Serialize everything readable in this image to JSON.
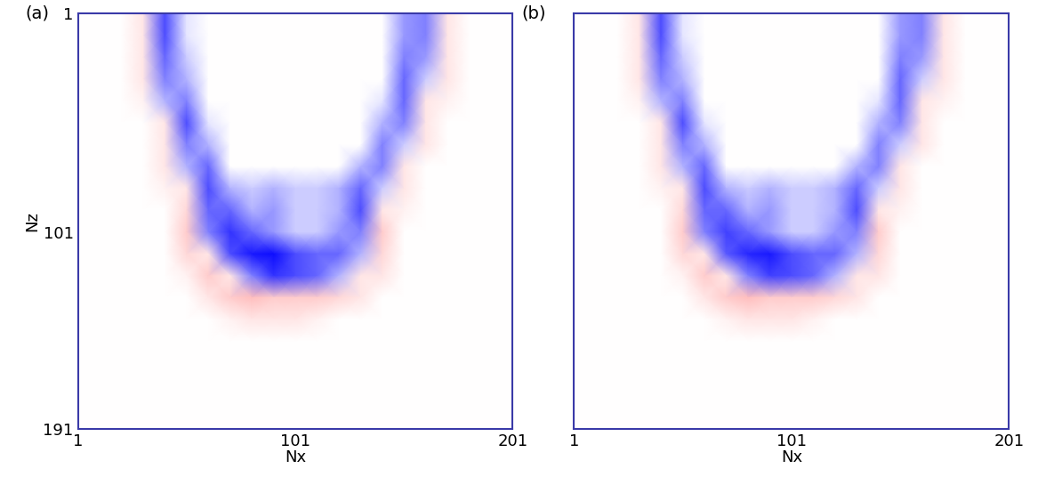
{
  "chart_data": [
    {
      "type": "heatmap",
      "title": "(a)",
      "x_label": "Nx",
      "y_label": "Nz",
      "xlim": [
        1,
        201
      ],
      "ylim": [
        191,
        1
      ],
      "xticks": [
        1,
        101,
        201
      ],
      "yticks": [
        1,
        101,
        191
      ],
      "color_range": [
        -1,
        1
      ],
      "x": [
        1,
        11,
        21,
        31,
        41,
        51,
        61,
        71,
        81,
        91,
        101,
        111,
        121,
        131,
        141,
        151,
        161,
        171,
        181,
        191,
        201
      ],
      "y": [
        1,
        11,
        21,
        31,
        41,
        51,
        61,
        71,
        81,
        91,
        101,
        111,
        121,
        131,
        141,
        151,
        161,
        171,
        181,
        191
      ],
      "cells": [
        [
          0,
          0,
          0,
          0.1,
          -0.7,
          -0.1,
          0,
          0,
          0,
          0,
          0,
          0,
          0,
          0,
          0,
          -0.4,
          -0.5,
          0.1,
          0,
          0,
          0
        ],
        [
          0,
          0,
          0,
          0.1,
          -0.7,
          -0.1,
          0,
          0,
          0,
          0,
          0,
          0,
          0,
          0,
          0,
          -0.4,
          -0.5,
          0.1,
          0,
          0,
          0
        ],
        [
          0,
          0,
          0,
          0.1,
          -0.6,
          -0.2,
          0,
          0,
          0,
          0,
          0,
          0,
          0,
          0,
          0,
          -0.5,
          -0.4,
          0.1,
          0,
          0,
          0
        ],
        [
          0,
          0,
          0,
          0.1,
          -0.5,
          -0.3,
          0,
          0,
          0,
          0,
          0,
          0,
          0,
          0,
          0,
          -0.6,
          -0.2,
          0.1,
          0,
          0,
          0
        ],
        [
          0,
          0,
          0,
          0.05,
          -0.3,
          -0.5,
          0,
          0,
          0,
          0,
          0,
          0,
          0,
          0,
          -0.1,
          -0.6,
          0.1,
          0.05,
          0,
          0,
          0
        ],
        [
          0,
          0,
          0,
          0,
          0.1,
          -0.7,
          -0.1,
          0,
          0,
          0,
          0,
          0,
          0,
          0,
          -0.3,
          -0.5,
          0.1,
          0,
          0,
          0,
          0
        ],
        [
          0,
          0,
          0,
          0,
          0.1,
          -0.5,
          -0.3,
          0,
          0,
          0,
          0,
          0,
          0,
          0,
          -0.5,
          -0.2,
          0.1,
          0,
          0,
          0,
          0
        ],
        [
          0,
          0,
          0,
          0,
          0.1,
          -0.3,
          -0.6,
          0,
          0,
          0,
          0,
          0,
          0,
          -0.3,
          -0.5,
          0.1,
          0,
          0,
          0,
          0,
          0
        ],
        [
          0,
          0,
          0,
          0,
          0.05,
          0.1,
          -0.7,
          -0.3,
          -0.2,
          -0.3,
          -0.2,
          -0.2,
          -0.3,
          -0.6,
          -0.2,
          0.1,
          0,
          0,
          0,
          0,
          0
        ],
        [
          0,
          0,
          0,
          0,
          0,
          0.15,
          -0.6,
          -0.6,
          -0.3,
          -0.4,
          -0.2,
          -0.2,
          -0.3,
          -0.7,
          0.1,
          0.05,
          0,
          0,
          0,
          0,
          0
        ],
        [
          0,
          0,
          0,
          0,
          0,
          0.2,
          -0.5,
          -0.8,
          -0.6,
          -0.4,
          -0.2,
          -0.2,
          -0.4,
          -0.5,
          0.2,
          0,
          0,
          0,
          0,
          0,
          0
        ],
        [
          0,
          0,
          0,
          0,
          0,
          0.15,
          0.1,
          -0.7,
          -0.9,
          -0.95,
          -0.7,
          -0.6,
          -0.6,
          -0.3,
          0.15,
          0,
          0,
          0,
          0,
          0,
          0
        ],
        [
          0,
          0,
          0,
          0,
          0,
          0.05,
          0.2,
          0.1,
          -0.5,
          -0.8,
          -0.7,
          -0.6,
          -0.3,
          0.1,
          0.1,
          0,
          0,
          0,
          0,
          0,
          0
        ],
        [
          0,
          0,
          0,
          0,
          0,
          0,
          0.1,
          0.2,
          0.25,
          0.2,
          0.2,
          0.2,
          0.15,
          0.1,
          0,
          0,
          0,
          0,
          0,
          0,
          0
        ],
        [
          0,
          0,
          0,
          0,
          0,
          0,
          0,
          0.05,
          0.1,
          0.1,
          0.1,
          0.05,
          0,
          0,
          0,
          0,
          0,
          0,
          0,
          0,
          0
        ],
        [
          0,
          0,
          0,
          0,
          0,
          0,
          0,
          0,
          0,
          0,
          0,
          0,
          0,
          0,
          0,
          0,
          0,
          0,
          0,
          0,
          0
        ],
        [
          0,
          0,
          0,
          0,
          0,
          0,
          0,
          0,
          0,
          0,
          0,
          0,
          0,
          0,
          0,
          0,
          0,
          0,
          0,
          0,
          0
        ],
        [
          0,
          0,
          0,
          0,
          0,
          0,
          0,
          0,
          0,
          0,
          0,
          0,
          0,
          0,
          0,
          0,
          0,
          0,
          0,
          0,
          0
        ],
        [
          0,
          0,
          0,
          0,
          0,
          0,
          0,
          0,
          0,
          0,
          0,
          0,
          0,
          0,
          0,
          0,
          0,
          0,
          0,
          0,
          0
        ],
        [
          0,
          0,
          0,
          0,
          0,
          0,
          0,
          0,
          0,
          0,
          0,
          0,
          0,
          0,
          0,
          0,
          0,
          0,
          0,
          0,
          0
        ]
      ]
    },
    {
      "type": "heatmap",
      "title": "(b)",
      "x_label": "Nx",
      "tick_labels": "x",
      "xlim": [
        1,
        201
      ],
      "ylim": [
        191,
        1
      ],
      "xticks": [
        1,
        101,
        201
      ],
      "yticks": [
        1,
        101,
        191
      ],
      "color_range": [
        -1,
        1
      ],
      "x": [
        1,
        11,
        21,
        31,
        41,
        51,
        61,
        71,
        81,
        91,
        101,
        111,
        121,
        131,
        141,
        151,
        161,
        171,
        181,
        191,
        201
      ],
      "y": [
        1,
        11,
        21,
        31,
        41,
        51,
        61,
        71,
        81,
        91,
        101,
        111,
        121,
        131,
        141,
        151,
        161,
        171,
        181,
        191
      ],
      "cells": [
        [
          0,
          0,
          0,
          0.1,
          -0.7,
          -0.1,
          0,
          0,
          0,
          0,
          0,
          0,
          0,
          0,
          0,
          -0.4,
          -0.5,
          0.1,
          0,
          0,
          0
        ],
        [
          0,
          0,
          0,
          0.1,
          -0.7,
          -0.1,
          0,
          0,
          0,
          0,
          0,
          0,
          0,
          0,
          0,
          -0.4,
          -0.5,
          0.1,
          0,
          0,
          0
        ],
        [
          0,
          0,
          0,
          0.1,
          -0.6,
          -0.2,
          0,
          0,
          0,
          0,
          0,
          0,
          0,
          0,
          0,
          -0.5,
          -0.4,
          0.1,
          0,
          0,
          0
        ],
        [
          0,
          0,
          0,
          0.1,
          -0.5,
          -0.3,
          0,
          0,
          0,
          0,
          0,
          0,
          0,
          0,
          0,
          -0.6,
          -0.2,
          0.1,
          0,
          0,
          0
        ],
        [
          0,
          0,
          0,
          0.05,
          -0.3,
          -0.5,
          0,
          0,
          0,
          0,
          0,
          0,
          0,
          0,
          -0.1,
          -0.6,
          0.1,
          0.05,
          0,
          0,
          0
        ],
        [
          0,
          0,
          0,
          0,
          0.1,
          -0.7,
          -0.1,
          0,
          0,
          0,
          0,
          0,
          0,
          0,
          -0.3,
          -0.5,
          0.1,
          0,
          0,
          0,
          0
        ],
        [
          0,
          0,
          0,
          0,
          0.1,
          -0.5,
          -0.3,
          0,
          0,
          0,
          0,
          0,
          0,
          0,
          -0.5,
          -0.2,
          0.1,
          0,
          0,
          0,
          0
        ],
        [
          0,
          0,
          0,
          0,
          0.1,
          -0.3,
          -0.6,
          0,
          0,
          0,
          0,
          0,
          0,
          -0.3,
          -0.5,
          0.1,
          0,
          0,
          0,
          0,
          0
        ],
        [
          0,
          0,
          0,
          0,
          0.05,
          0.1,
          -0.7,
          -0.3,
          -0.2,
          -0.3,
          -0.2,
          -0.2,
          -0.3,
          -0.6,
          -0.2,
          0.1,
          0,
          0,
          0,
          0,
          0
        ],
        [
          0,
          0,
          0,
          0,
          0,
          0.15,
          -0.6,
          -0.6,
          -0.3,
          -0.4,
          -0.2,
          -0.2,
          -0.3,
          -0.7,
          0.1,
          0.05,
          0,
          0,
          0,
          0,
          0
        ],
        [
          0,
          0,
          0,
          0,
          0,
          0.2,
          -0.5,
          -0.75,
          -0.6,
          -0.4,
          -0.2,
          -0.2,
          -0.4,
          -0.5,
          0.2,
          0,
          0,
          0,
          0,
          0,
          0
        ],
        [
          0,
          0,
          0,
          0,
          0,
          0.15,
          0.1,
          -0.65,
          -0.85,
          -0.9,
          -0.7,
          -0.6,
          -0.6,
          -0.3,
          0.15,
          0,
          0,
          0,
          0,
          0,
          0
        ],
        [
          0,
          0,
          0,
          0,
          0,
          0.05,
          0.2,
          0.1,
          -0.5,
          -0.75,
          -0.7,
          -0.6,
          -0.3,
          0.1,
          0.1,
          0,
          0,
          0,
          0,
          0,
          0
        ],
        [
          0,
          0,
          0,
          0,
          0,
          0,
          0.1,
          0.2,
          0.25,
          0.2,
          0.2,
          0.2,
          0.15,
          0.1,
          0,
          0,
          0,
          0,
          0,
          0,
          0
        ],
        [
          0,
          0,
          0,
          0,
          0,
          0,
          0,
          0.05,
          0.1,
          0.1,
          0.1,
          0.05,
          0,
          0,
          0,
          0,
          0,
          0,
          0,
          0,
          0
        ],
        [
          0,
          0,
          0,
          0,
          0,
          0,
          0,
          0,
          0,
          0,
          0,
          0,
          0,
          0,
          0,
          0,
          0,
          0,
          0,
          0,
          0
        ],
        [
          0,
          0,
          0,
          0,
          0,
          0,
          0,
          0,
          0,
          0,
          0,
          0,
          0,
          0,
          0,
          0,
          0,
          0,
          0,
          0,
          0
        ],
        [
          0,
          0,
          0,
          0,
          0,
          0,
          0,
          0,
          0,
          0,
          0,
          0,
          0,
          0,
          0,
          0,
          0,
          0,
          0,
          0,
          0
        ],
        [
          0,
          0,
          0,
          0,
          0,
          0,
          0,
          0,
          0,
          0,
          0,
          0,
          0,
          0,
          0,
          0,
          0,
          0,
          0,
          0,
          0
        ],
        [
          0,
          0,
          0,
          0,
          0,
          0,
          0,
          0,
          0,
          0,
          0,
          0,
          0,
          0,
          0,
          0,
          0,
          0,
          0,
          0,
          0
        ]
      ]
    }
  ]
}
